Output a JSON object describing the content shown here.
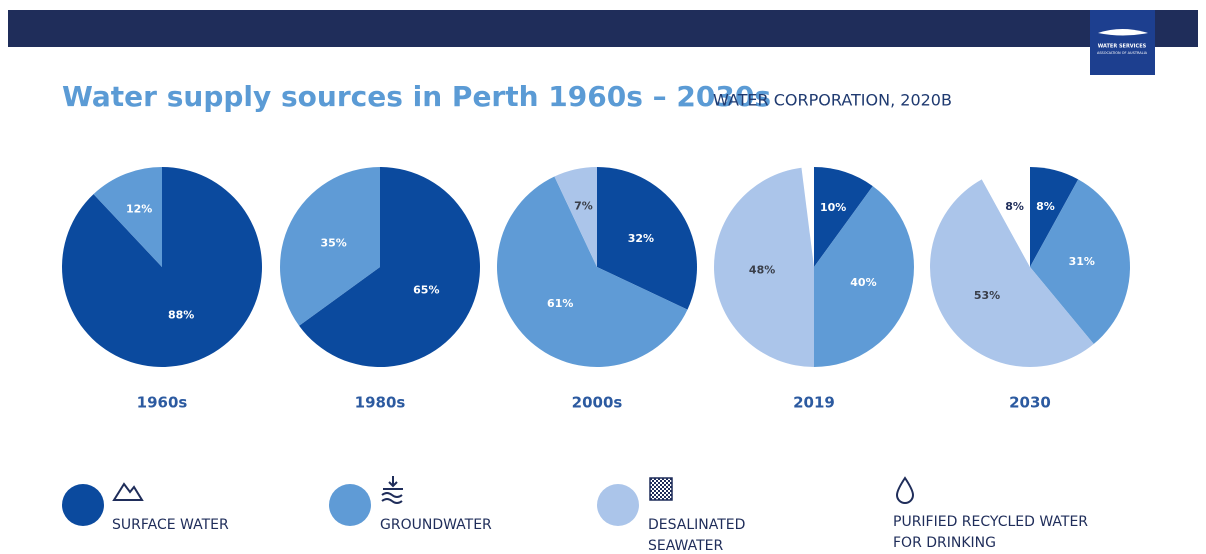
{
  "header": {
    "title": "Water supply sources in Perth 1960s – 2030s",
    "source": "WATER CORPORATION, 2020B",
    "logo": [
      "WATER SERVICES",
      "ASSOCIATION OF AUSTRALIA"
    ]
  },
  "legend": [
    {
      "name": [
        "SURFACE WATER"
      ],
      "color": "#0b4a9e",
      "label_color": "#ffffff"
    },
    {
      "name": [
        "GROUNDWATER"
      ],
      "color": "#5f9bd6",
      "label_color": "#ffffff"
    },
    {
      "name": [
        "DESALINATED",
        "SEAWATER"
      ],
      "color": "#abc5ea",
      "label_color": "#3a3f4a"
    },
    {
      "name": [
        "PURIFIED RECYCLED WATER",
        "FOR DRINKING"
      ],
      "color": "#ffffff",
      "label_color": "#1f2d5a"
    }
  ],
  "chart_data": [
    {
      "type": "pie",
      "title": "1960s",
      "values": [
        88,
        12,
        null,
        null
      ],
      "value_labels": [
        "88%",
        "12%",
        null,
        null
      ]
    },
    {
      "type": "pie",
      "title": "1980s",
      "values": [
        65,
        35,
        null,
        null
      ],
      "value_labels": [
        "65%",
        "35%",
        null,
        null
      ]
    },
    {
      "type": "pie",
      "title": "2000s",
      "values": [
        32,
        61,
        7,
        null
      ],
      "value_labels": [
        "32%",
        "61%",
        "7%",
        null
      ]
    },
    {
      "type": "pie",
      "title": "2019",
      "values": [
        10,
        40,
        48,
        null
      ],
      "value_labels": [
        "10%",
        "40%",
        "48%",
        null
      ]
    },
    {
      "type": "pie",
      "title": "2030",
      "values": [
        8,
        31,
        53,
        8
      ],
      "value_labels": [
        "8%",
        "31%",
        "53%",
        "8%"
      ]
    }
  ]
}
